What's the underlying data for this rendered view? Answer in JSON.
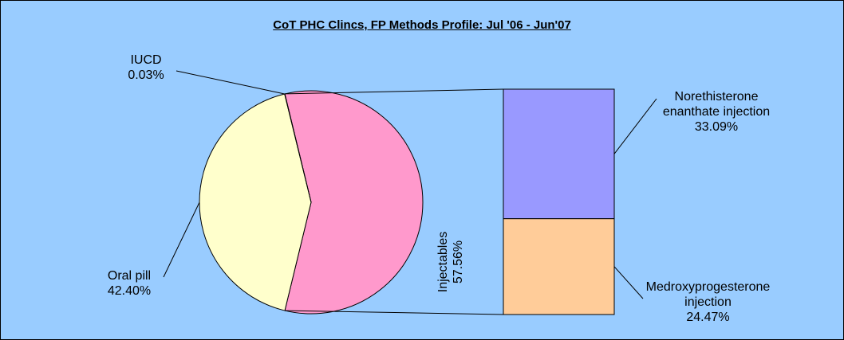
{
  "chart_data": {
    "type": "bar_of_pie",
    "title": "CoT PHC Clincs, FP Methods Profile: Jul '06 - Jun'07",
    "categories": [
      "Injectables",
      "Oral pill",
      "IUCD"
    ],
    "values": [
      57.56,
      42.4,
      0.03
    ],
    "value_labels": [
      "57.56%",
      "42.40%",
      "0.03%"
    ],
    "colors": [
      "#ff99cc",
      "#ffffcc",
      "#9999ff"
    ],
    "secondary": {
      "categories": [
        "Norethisterone enanthate injection",
        "Medroxyprogesterone injection"
      ],
      "values": [
        33.09,
        24.47
      ],
      "value_labels": [
        "33.09%",
        "24.47%"
      ],
      "colors": [
        "#9999ff",
        "#ffcc99"
      ]
    }
  }
}
